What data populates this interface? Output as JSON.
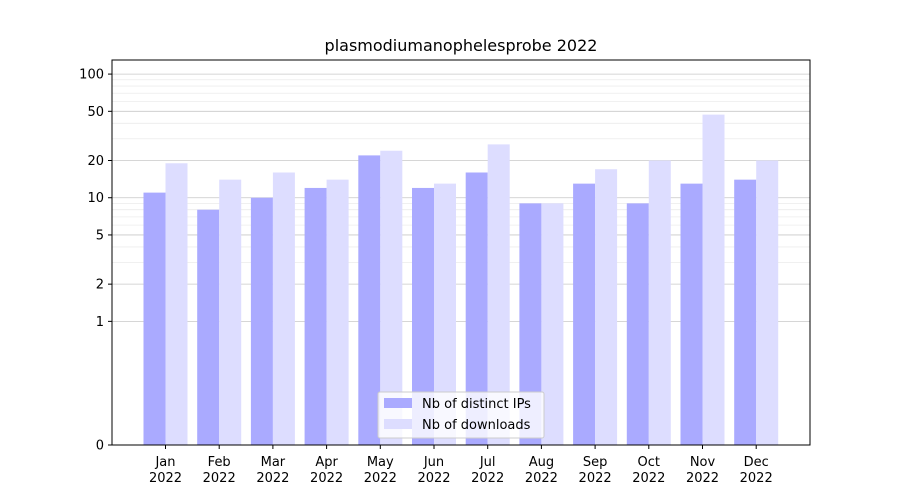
{
  "chart_data": {
    "type": "bar",
    "title": "plasmodiumanophelesprobe 2022",
    "xlabel": "",
    "ylabel": "",
    "y_scale": "symlog",
    "ylim": [
      0,
      130
    ],
    "y_ticks": [
      0,
      1,
      2,
      5,
      10,
      20,
      50,
      100
    ],
    "grid": true,
    "legend_position": "lower center",
    "categories": [
      [
        "Jan",
        "2022"
      ],
      [
        "Feb",
        "2022"
      ],
      [
        "Mar",
        "2022"
      ],
      [
        "Apr",
        "2022"
      ],
      [
        "May",
        "2022"
      ],
      [
        "Jun",
        "2022"
      ],
      [
        "Jul",
        "2022"
      ],
      [
        "Aug",
        "2022"
      ],
      [
        "Sep",
        "2022"
      ],
      [
        "Oct",
        "2022"
      ],
      [
        "Nov",
        "2022"
      ],
      [
        "Dec",
        "2022"
      ]
    ],
    "series": [
      {
        "name": "Nb of distinct IPs",
        "color": "#aaaaff",
        "values": [
          11,
          8,
          10,
          12,
          22,
          12,
          16,
          9,
          13,
          9,
          13,
          14
        ]
      },
      {
        "name": "Nb of downloads",
        "color": "#ddddff",
        "values": [
          19,
          14,
          16,
          14,
          24,
          13,
          27,
          9,
          17,
          20,
          47,
          20
        ]
      }
    ]
  }
}
